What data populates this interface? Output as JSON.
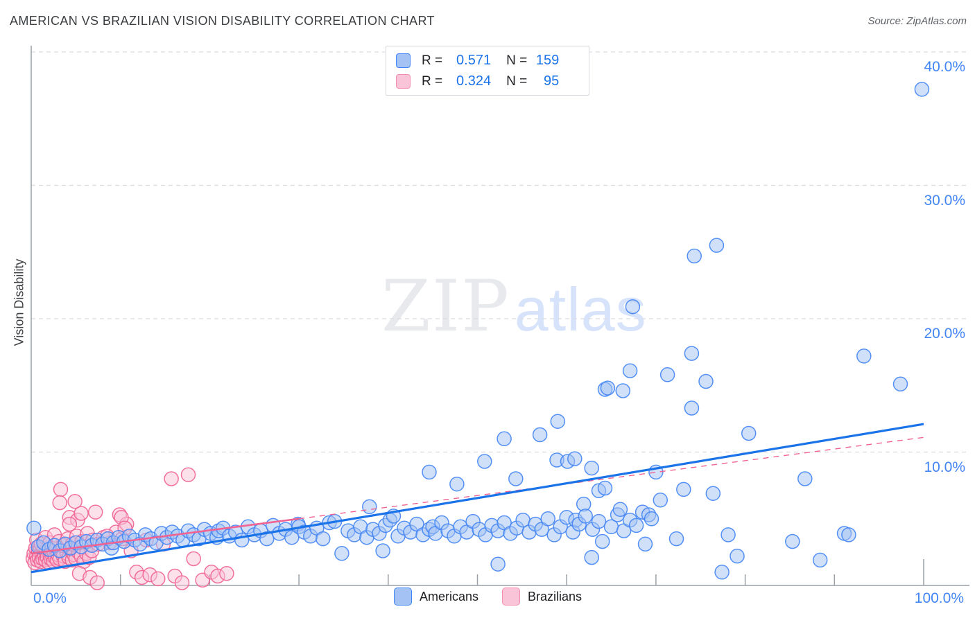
{
  "header": {
    "title": "AMERICAN VS BRAZILIAN VISION DISABILITY CORRELATION CHART",
    "source": "Source: ZipAtlas.com"
  },
  "stats_legend": {
    "rows": [
      {
        "r_label": "R =",
        "r_value": "0.571",
        "n_label": "N =",
        "n_value": "159"
      },
      {
        "r_label": "R =",
        "r_value": "0.324",
        "n_label": "N =",
        "n_value": "95"
      }
    ]
  },
  "axes": {
    "y_title": "Vision Disability",
    "y_tick_labels": [
      "40.0%",
      "30.0%",
      "20.0%",
      "10.0%"
    ],
    "x_tick_left": "0.0%",
    "x_tick_right": "100.0%"
  },
  "bottom_legend": [
    {
      "label": "Americans"
    },
    {
      "label": "Brazilians"
    }
  ],
  "watermark": {
    "zip": "ZIP",
    "atlas": "atlas"
  },
  "colors": {
    "american_fill": "#a4c2f4",
    "american_stroke": "#4285f4",
    "american_trend": "#1a73e8",
    "brazilian_fill": "#f9c4d8",
    "brazilian_stroke": "#f06292",
    "brazilian_trend": "#f06292",
    "grid": "#dadce0",
    "axis": "#9aa0a6",
    "tick_label": "#4285f4"
  },
  "chart_data": {
    "type": "scatter",
    "title": "AMERICAN VS BRAZILIAN VISION DISABILITY CORRELATION CHART",
    "xlabel": "",
    "ylabel": "Vision Disability",
    "xlim": [
      0,
      100
    ],
    "ylim": [
      0,
      40
    ],
    "x_unit": "percent",
    "y_unit": "percent",
    "grid": "horizontal-dashed at 10,20,30,40",
    "legend_position": "bottom-center",
    "series": [
      {
        "name": "Americans",
        "R": 0.571,
        "N": 159,
        "points": [
          [
            0.3,
            4.3
          ],
          [
            0.8,
            2.9
          ],
          [
            1.4,
            3.2
          ],
          [
            2.0,
            2.7
          ],
          [
            2.6,
            3.0
          ],
          [
            3.2,
            2.6
          ],
          [
            3.8,
            3.1
          ],
          [
            4.4,
            2.8
          ],
          [
            5.0,
            3.2
          ],
          [
            5.6,
            2.9
          ],
          [
            6.2,
            3.3
          ],
          [
            6.8,
            3.0
          ],
          [
            7.4,
            3.4
          ],
          [
            8.0,
            3.1
          ],
          [
            8.6,
            3.5
          ],
          [
            9.0,
            2.8
          ],
          [
            9.2,
            3.2
          ],
          [
            9.8,
            3.6
          ],
          [
            10.4,
            3.3
          ],
          [
            11.0,
            3.7
          ],
          [
            11.6,
            3.4
          ],
          [
            12.2,
            3.1
          ],
          [
            12.8,
            3.8
          ],
          [
            13.4,
            3.5
          ],
          [
            14.0,
            3.2
          ],
          [
            14.6,
            3.9
          ],
          [
            15.2,
            3.6
          ],
          [
            15.8,
            4.0
          ],
          [
            16.4,
            3.7
          ],
          [
            17.0,
            3.4
          ],
          [
            17.6,
            4.1
          ],
          [
            18.2,
            3.8
          ],
          [
            18.8,
            3.5
          ],
          [
            19.4,
            4.2
          ],
          [
            20.1,
            3.9
          ],
          [
            20.8,
            3.6
          ],
          [
            21.0,
            4.1
          ],
          [
            21.5,
            4.3
          ],
          [
            22.2,
            3.7
          ],
          [
            22.9,
            4.0
          ],
          [
            23.6,
            3.4
          ],
          [
            24.3,
            4.4
          ],
          [
            25.0,
            3.8
          ],
          [
            25.7,
            4.1
          ],
          [
            26.4,
            3.5
          ],
          [
            27.1,
            4.5
          ],
          [
            27.8,
            3.9
          ],
          [
            28.5,
            4.2
          ],
          [
            29.2,
            3.6
          ],
          [
            29.9,
            4.6
          ],
          [
            30.0,
            4.4
          ],
          [
            30.6,
            4.0
          ],
          [
            31.3,
            3.7
          ],
          [
            32.0,
            4.3
          ],
          [
            32.7,
            3.5
          ],
          [
            33.4,
            4.7
          ],
          [
            34.0,
            4.8
          ],
          [
            34.8,
            2.4
          ],
          [
            35.5,
            4.1
          ],
          [
            36.2,
            3.8
          ],
          [
            36.9,
            4.4
          ],
          [
            37.6,
            3.6
          ],
          [
            37.9,
            5.9
          ],
          [
            38.3,
            4.2
          ],
          [
            39.0,
            3.9
          ],
          [
            39.4,
            2.6
          ],
          [
            39.7,
            4.5
          ],
          [
            40.2,
            4.9
          ],
          [
            40.6,
            5.2
          ],
          [
            41.1,
            3.7
          ],
          [
            41.8,
            4.3
          ],
          [
            42.5,
            4.0
          ],
          [
            43.2,
            4.6
          ],
          [
            43.9,
            3.8
          ],
          [
            44.6,
            8.5
          ],
          [
            44.6,
            4.2
          ],
          [
            45.0,
            4.4
          ],
          [
            45.3,
            3.9
          ],
          [
            46.0,
            4.7
          ],
          [
            46.7,
            4.1
          ],
          [
            47.4,
            3.7
          ],
          [
            47.7,
            7.6
          ],
          [
            48.1,
            4.4
          ],
          [
            48.8,
            4.0
          ],
          [
            49.5,
            4.8
          ],
          [
            50.2,
            4.2
          ],
          [
            50.8,
            9.3
          ],
          [
            50.9,
            3.8
          ],
          [
            51.6,
            4.5
          ],
          [
            52.3,
            1.6
          ],
          [
            52.3,
            4.1
          ],
          [
            53.0,
            11.0
          ],
          [
            53.0,
            4.7
          ],
          [
            53.7,
            3.9
          ],
          [
            54.3,
            8.0
          ],
          [
            54.4,
            4.3
          ],
          [
            55.1,
            4.9
          ],
          [
            55.8,
            4.0
          ],
          [
            56.5,
            4.6
          ],
          [
            57.0,
            11.3
          ],
          [
            57.2,
            4.2
          ],
          [
            57.9,
            5.0
          ],
          [
            58.6,
            3.8
          ],
          [
            58.9,
            9.4
          ],
          [
            59.0,
            12.3
          ],
          [
            59.3,
            4.4
          ],
          [
            60.0,
            5.1
          ],
          [
            60.1,
            9.3
          ],
          [
            60.7,
            4.0
          ],
          [
            60.9,
            9.5
          ],
          [
            61.0,
            4.9
          ],
          [
            61.4,
            4.6
          ],
          [
            61.9,
            6.1
          ],
          [
            62.1,
            5.2
          ],
          [
            62.8,
            8.8
          ],
          [
            62.8,
            2.1
          ],
          [
            62.9,
            4.2
          ],
          [
            63.6,
            7.1
          ],
          [
            63.6,
            4.8
          ],
          [
            64.0,
            3.3
          ],
          [
            64.3,
            7.3
          ],
          [
            64.3,
            14.7
          ],
          [
            64.6,
            14.8
          ],
          [
            65.0,
            4.4
          ],
          [
            65.7,
            5.3
          ],
          [
            66.0,
            5.7
          ],
          [
            66.3,
            14.6
          ],
          [
            66.4,
            4.1
          ],
          [
            67.1,
            16.1
          ],
          [
            67.1,
            4.9
          ],
          [
            67.4,
            20.9
          ],
          [
            67.8,
            4.5
          ],
          [
            68.5,
            5.5
          ],
          [
            68.8,
            3.1
          ],
          [
            69.2,
            5.3
          ],
          [
            69.5,
            5.0
          ],
          [
            70.0,
            8.5
          ],
          [
            70.5,
            6.4
          ],
          [
            71.3,
            15.8
          ],
          [
            72.3,
            3.5
          ],
          [
            73.1,
            7.2
          ],
          [
            74.0,
            13.3
          ],
          [
            74.0,
            17.4
          ],
          [
            74.3,
            24.7
          ],
          [
            75.6,
            15.3
          ],
          [
            76.4,
            6.9
          ],
          [
            76.8,
            25.5
          ],
          [
            77.4,
            1.0
          ],
          [
            78.1,
            3.8
          ],
          [
            79.1,
            2.2
          ],
          [
            80.4,
            11.4
          ],
          [
            85.3,
            3.3
          ],
          [
            86.7,
            8.0
          ],
          [
            88.4,
            1.9
          ],
          [
            91.1,
            3.9
          ],
          [
            91.6,
            3.8
          ],
          [
            93.3,
            17.2
          ],
          [
            97.4,
            15.1
          ],
          [
            99.8,
            37.2
          ]
        ]
      },
      {
        "name": "Brazilians",
        "R": 0.324,
        "N": 95,
        "points": [
          [
            0.2,
            2.0
          ],
          [
            0.3,
            2.4
          ],
          [
            0.4,
            1.7
          ],
          [
            0.5,
            2.8
          ],
          [
            0.6,
            2.2
          ],
          [
            0.7,
            1.9
          ],
          [
            0.8,
            2.6
          ],
          [
            0.9,
            2.1
          ],
          [
            1.0,
            2.9
          ],
          [
            1.1,
            1.8
          ],
          [
            1.2,
            2.4
          ],
          [
            1.3,
            2.0
          ],
          [
            1.4,
            2.7
          ],
          [
            1.5,
            2.3
          ],
          [
            1.6,
            1.9
          ],
          [
            1.7,
            2.5
          ],
          [
            1.8,
            2.1
          ],
          [
            1.9,
            2.8
          ],
          [
            2.0,
            1.7
          ],
          [
            2.1,
            2.3
          ],
          [
            2.2,
            2.0
          ],
          [
            2.3,
            2.6
          ],
          [
            2.4,
            2.2
          ],
          [
            2.5,
            1.8
          ],
          [
            2.6,
            2.4
          ],
          [
            2.7,
            2.1
          ],
          [
            2.8,
            2.7
          ],
          [
            2.9,
            1.9
          ],
          [
            3.0,
            2.3
          ],
          [
            3.2,
            2.0
          ],
          [
            3.4,
            2.6
          ],
          [
            3.6,
            2.2
          ],
          [
            3.8,
            1.8
          ],
          [
            4.0,
            2.4
          ],
          [
            4.2,
            2.1
          ],
          [
            4.4,
            2.7
          ],
          [
            4.6,
            1.9
          ],
          [
            4.8,
            2.3
          ],
          [
            5.0,
            2.0
          ],
          [
            5.3,
            2.5
          ],
          [
            5.6,
            2.2
          ],
          [
            5.9,
            1.8
          ],
          [
            6.2,
            2.4
          ],
          [
            6.5,
            2.1
          ],
          [
            6.8,
            2.6
          ],
          [
            0.6,
            3.4
          ],
          [
            1.1,
            3.1
          ],
          [
            1.6,
            3.6
          ],
          [
            2.1,
            3.2
          ],
          [
            2.6,
            3.8
          ],
          [
            3.1,
            3.3
          ],
          [
            3.6,
            3.0
          ],
          [
            4.1,
            3.5
          ],
          [
            4.6,
            3.1
          ],
          [
            5.1,
            3.7
          ],
          [
            5.7,
            3.3
          ],
          [
            6.3,
            3.9
          ],
          [
            6.9,
            3.4
          ],
          [
            7.5,
            3.1
          ],
          [
            8.1,
            3.6
          ],
          [
            8.8,
            3.2
          ],
          [
            9.5,
            4.0
          ],
          [
            10.2,
            3.5
          ],
          [
            11.2,
            2.6
          ],
          [
            12.9,
            3.4
          ],
          [
            14.8,
            3.1
          ],
          [
            18.2,
            2.0
          ],
          [
            4.3,
            5.1
          ],
          [
            5.2,
            4.9
          ],
          [
            9.9,
            5.3
          ],
          [
            10.7,
            4.6
          ],
          [
            8.5,
            3.7
          ],
          [
            4.3,
            4.6
          ],
          [
            10.1,
            5.1
          ],
          [
            10.5,
            4.3
          ],
          [
            5.6,
            5.4
          ],
          [
            7.2,
            5.5
          ],
          [
            3.3,
            7.2
          ],
          [
            4.9,
            6.3
          ],
          [
            3.2,
            6.2
          ],
          [
            15.7,
            8.0
          ],
          [
            17.6,
            8.3
          ],
          [
            5.4,
            0.9
          ],
          [
            6.6,
            0.6
          ],
          [
            7.4,
            0.2
          ],
          [
            11.8,
            1.0
          ],
          [
            12.4,
            0.6
          ],
          [
            13.3,
            0.8
          ],
          [
            14.2,
            0.5
          ],
          [
            16.1,
            0.7
          ],
          [
            16.9,
            0.2
          ],
          [
            19.2,
            0.4
          ],
          [
            20.2,
            1.0
          ],
          [
            20.9,
            0.7
          ],
          [
            21.9,
            0.9
          ]
        ]
      }
    ],
    "trend_lines": [
      {
        "series": "Americans",
        "style": "solid",
        "from": [
          0,
          1.0
        ],
        "to": [
          100,
          12.1
        ]
      },
      {
        "series": "Brazilians",
        "style": "solid",
        "from": [
          0,
          2.4
        ],
        "to": [
          30,
          5.0
        ]
      },
      {
        "series": "Brazilians",
        "style": "dashed",
        "from": [
          30,
          5.0
        ],
        "to": [
          100,
          11.1
        ]
      }
    ]
  }
}
